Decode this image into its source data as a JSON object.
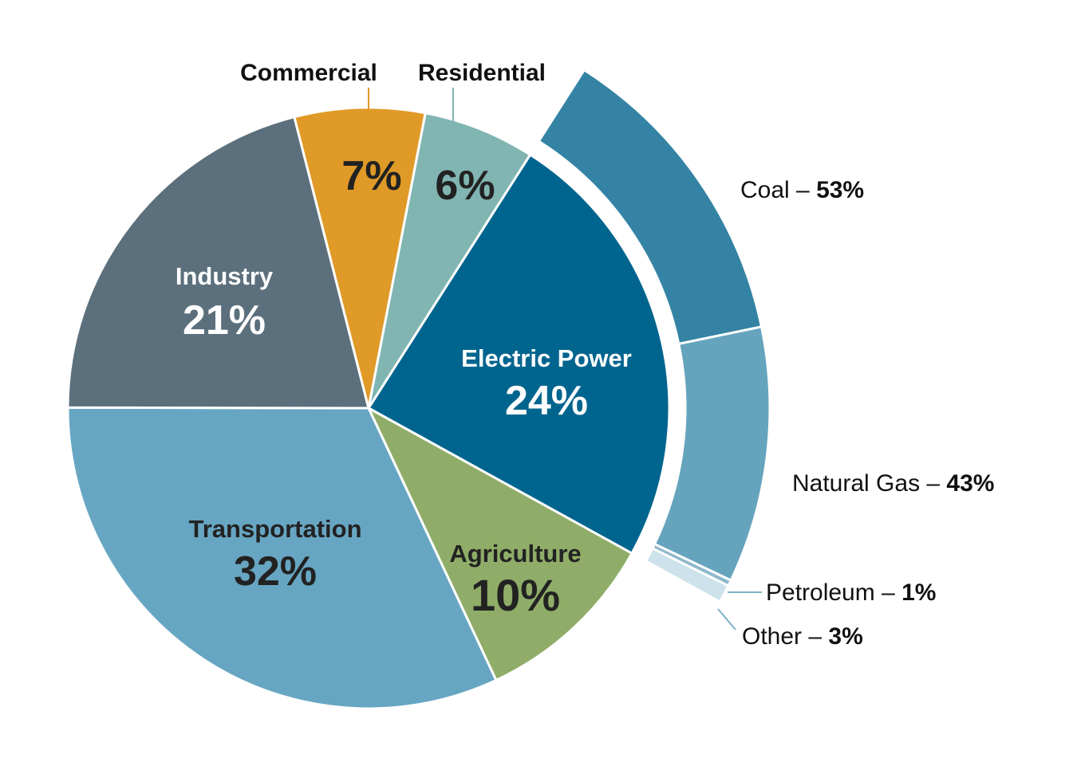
{
  "chart_data": [
    {
      "type": "pie",
      "categories": [
        "Electric Power",
        "Agriculture",
        "Transportation",
        "Industry",
        "Commercial",
        "Residential"
      ],
      "values": [
        24,
        10,
        32,
        21,
        7,
        6
      ],
      "value_labels": [
        "24%",
        "10%",
        "32%",
        "21%",
        "7%",
        "6%"
      ],
      "colors": [
        "#00658e",
        "#8fad68",
        "#67a6c2",
        "#5c6f7c",
        "#e09a27",
        "#80b5b2"
      ],
      "label_colors": [
        "#ffffff",
        "#222222",
        "#222222",
        "#ffffff",
        "#222222",
        "#222222"
      ]
    },
    {
      "type": "pie",
      "title": "Electric Power",
      "categories": [
        "Coal",
        "Natural Gas",
        "Petroleum",
        "Other"
      ],
      "values": [
        53,
        43,
        1,
        3
      ],
      "name_labels": [
        "Coal – ",
        "Natural Gas – ",
        "Petroleum – ",
        "Other – "
      ],
      "value_labels": [
        "53%",
        "43%",
        "1%",
        "3%"
      ],
      "colors": [
        "#3483a4",
        "#66a4be",
        "#8fb8cc",
        "#cde2ea"
      ]
    }
  ]
}
